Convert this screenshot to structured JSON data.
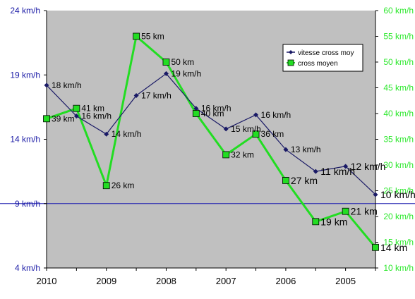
{
  "chart_data": {
    "type": "line",
    "x": [
      "2010",
      "",
      "2009",
      "",
      "2008",
      "",
      "2007",
      "",
      "2006",
      "",
      "2005",
      ""
    ],
    "xticks": [
      "2010",
      "2009",
      "2008",
      "2007",
      "2006",
      "2005"
    ],
    "background": "#c0c0c0",
    "grid": false,
    "legend_position": "top-right",
    "left_axis": {
      "ylim": [
        4,
        24
      ],
      "ticks": [
        {
          "v": 4,
          "label": "4 km/h"
        },
        {
          "v": 9,
          "label": "9 km/h"
        },
        {
          "v": 14,
          "label": "14 km/h"
        },
        {
          "v": 19,
          "label": "19 km/h"
        },
        {
          "v": 24,
          "label": "24 km/h"
        }
      ],
      "color": "#1a1aa6",
      "reference_line": 9
    },
    "right_axis": {
      "ylim": [
        10,
        60
      ],
      "ticks": [
        {
          "v": 10,
          "label": "10 km/h"
        },
        {
          "v": 15,
          "label": "15 km/h"
        },
        {
          "v": 20,
          "label": "20 km/h"
        },
        {
          "v": 25,
          "label": "25 km/h"
        },
        {
          "v": 30,
          "label": "30 km/h"
        },
        {
          "v": 35,
          "label": "35 km/h"
        },
        {
          "v": 40,
          "label": "40 km/h"
        },
        {
          "v": 45,
          "label": "45 km/h"
        },
        {
          "v": 50,
          "label": "50 km/h"
        },
        {
          "v": 55,
          "label": "55 km/h"
        },
        {
          "v": 60,
          "label": "60 km/h"
        }
      ],
      "color": "#2ee82e"
    },
    "series": [
      {
        "name": "vitesse cross moy",
        "axis": "left",
        "color": "#1a1a66",
        "marker": "diamond",
        "values": [
          18.2,
          15.8,
          14.4,
          17.4,
          19.1,
          16.4,
          14.8,
          15.9,
          13.2,
          11.5,
          11.9,
          9.7
        ],
        "labels": [
          "18 km/h",
          "16 km/h",
          "14 km/h",
          "17 km/h",
          "19 km/h",
          "16 km/h",
          "15 km/h",
          "16 km/h",
          "13 km/h",
          "11 km/h",
          "12 km/h",
          "10 km/h"
        ]
      },
      {
        "name": "cross moyen",
        "axis": "right",
        "color": "#22dd22",
        "marker": "square",
        "values": [
          39,
          41,
          26,
          55,
          50,
          40,
          32,
          36,
          27,
          19,
          21,
          14
        ],
        "labels": [
          "39 km",
          "41 km",
          "26 km",
          "55 km",
          "50 km",
          "40 km",
          "32 km",
          "36 km",
          "27 km",
          "19 km",
          "21 km",
          "14 km"
        ]
      }
    ]
  }
}
